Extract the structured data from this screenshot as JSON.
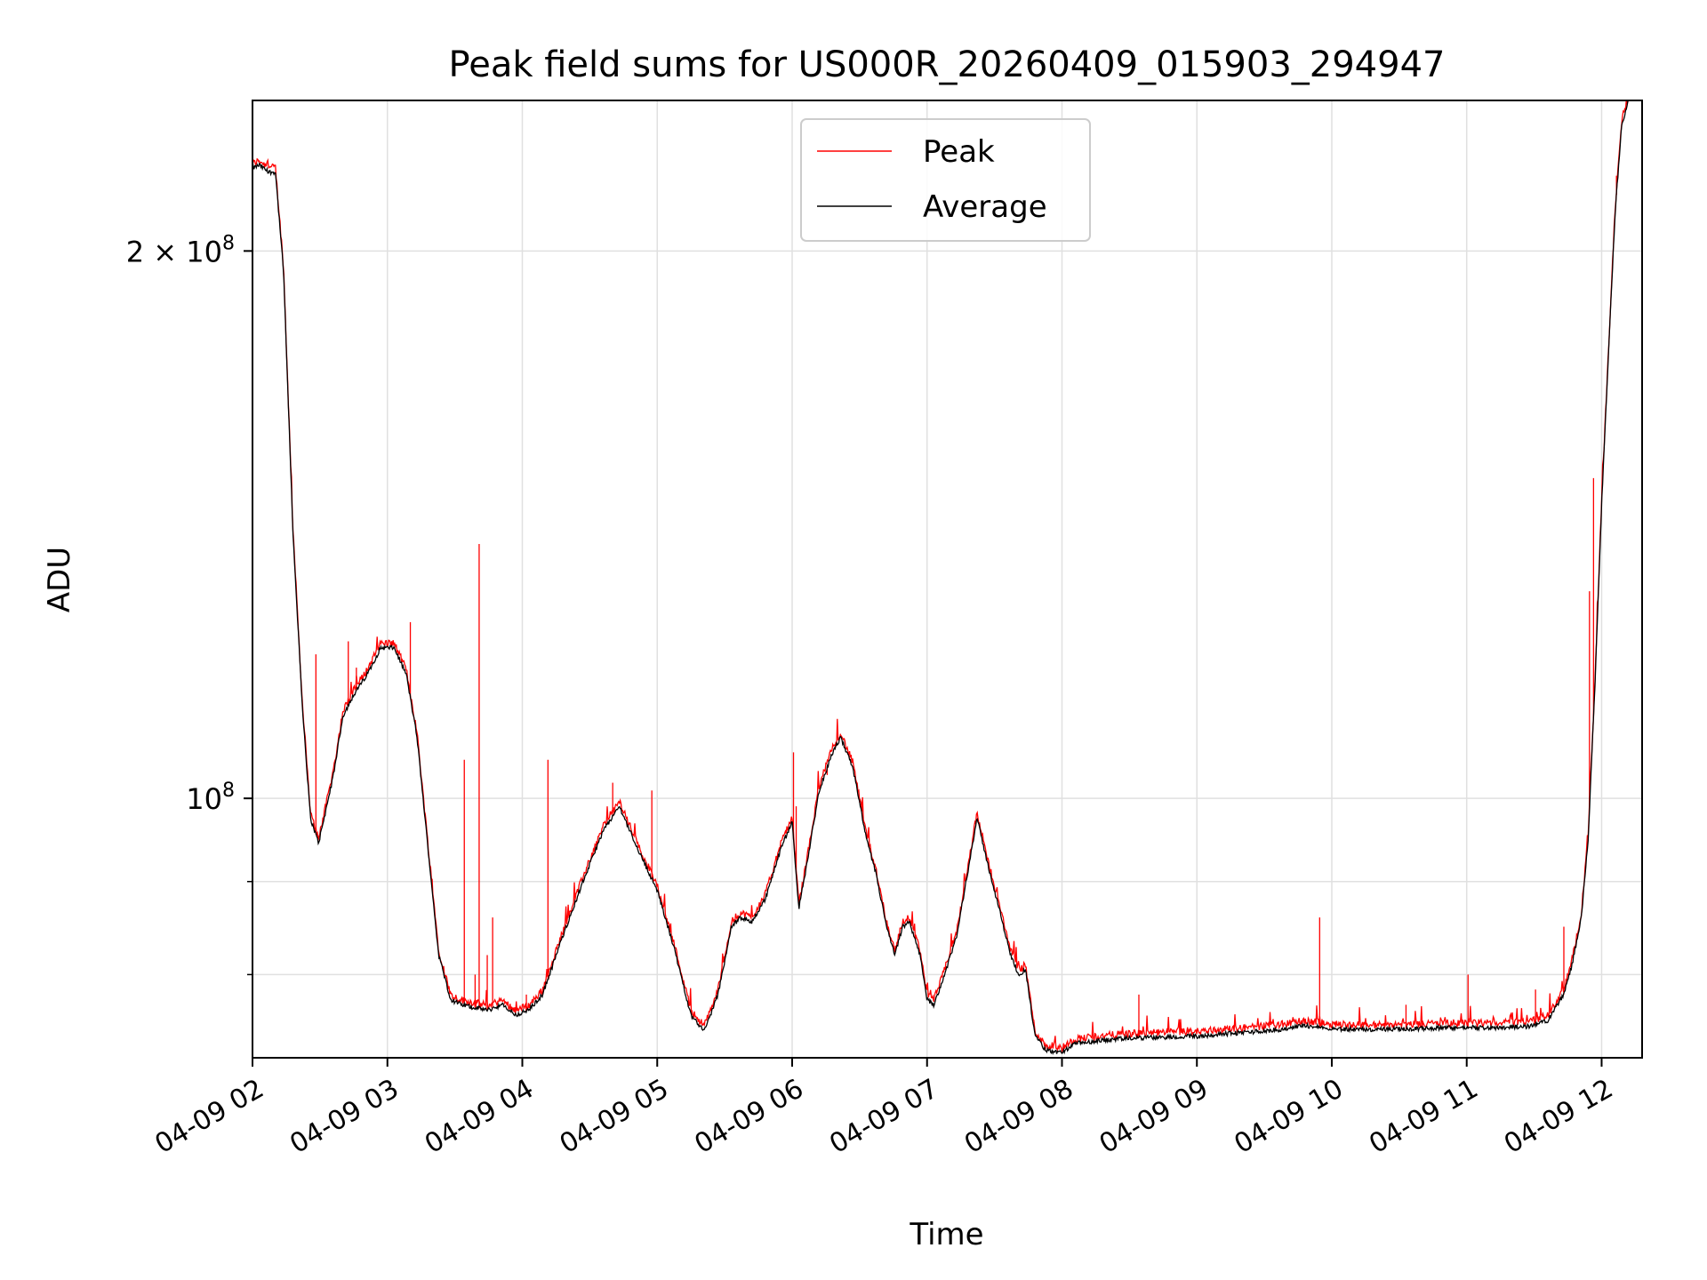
{
  "chart_data": {
    "type": "line",
    "title": "Peak field sums for US000R_20260409_015903_294947",
    "xlabel": "Time",
    "ylabel": "ADU",
    "yscale": "log",
    "grid": true,
    "legend_position": "upper center",
    "x_tick_labels": [
      "04-09 02",
      "04-09 03",
      "04-09 04",
      "04-09 05",
      "04-09 06",
      "04-09 07",
      "04-09 08",
      "04-09 09",
      "04-09 10",
      "04-09 11",
      "04-09 12"
    ],
    "x_ticks_hours": [
      2,
      3,
      4,
      5,
      6,
      7,
      8,
      9,
      10,
      11,
      12
    ],
    "xlim_hours": [
      2.0,
      12.3
    ],
    "ylim": [
      72000000,
      242000000
    ],
    "y_major_ticks": [
      {
        "value": 100000000,
        "base": "10",
        "exp": "8",
        "mant": ""
      },
      {
        "value": 200000000,
        "base": "10",
        "exp": "8",
        "mant": "2 × "
      }
    ],
    "y_minor_ticks": [
      80000000,
      90000000
    ],
    "series": [
      {
        "name": "Peak",
        "color": "#ff0000",
        "spikes": [
          [
            2.47,
            120000000
          ],
          [
            2.71,
            122000000
          ],
          [
            2.77,
            118000000
          ],
          [
            3.17,
            125000000
          ],
          [
            3.36,
            85000000
          ],
          [
            3.57,
            105000000
          ],
          [
            3.65,
            80000000
          ],
          [
            3.68,
            138000000
          ],
          [
            3.74,
            82000000
          ],
          [
            3.78,
            86000000
          ],
          [
            4.19,
            105000000
          ],
          [
            4.03,
            78000000
          ],
          [
            4.67,
            102000000
          ],
          [
            4.96,
            101000000
          ],
          [
            6.01,
            106000000
          ],
          [
            6.03,
            99000000
          ],
          [
            6.26,
            103000000
          ],
          [
            8.57,
            78000000
          ],
          [
            9.91,
            86000000
          ],
          [
            10.55,
            77000000
          ],
          [
            11.01,
            80000000
          ],
          [
            11.51,
            78500000
          ],
          [
            11.72,
            85000000
          ],
          [
            11.91,
            130000000
          ],
          [
            11.94,
            150000000
          ],
          [
            12.11,
            220000000
          ]
        ]
      },
      {
        "name": "Average",
        "color": "#000000",
        "x_hours": [
          2.0,
          2.05,
          2.12,
          2.17,
          2.23,
          2.3,
          2.37,
          2.43,
          2.49,
          2.55,
          2.6,
          2.67,
          2.75,
          2.85,
          2.95,
          3.05,
          3.14,
          3.22,
          3.3,
          3.38,
          3.47,
          3.55,
          3.65,
          3.75,
          3.85,
          3.95,
          4.05,
          4.15,
          4.3,
          4.45,
          4.6,
          4.72,
          4.85,
          5.0,
          5.12,
          5.25,
          5.35,
          5.45,
          5.55,
          5.62,
          5.7,
          5.8,
          5.92,
          6.0,
          6.05,
          6.12,
          6.2,
          6.3,
          6.36,
          6.45,
          6.55,
          6.62,
          6.7,
          6.76,
          6.82,
          6.87,
          6.9,
          6.95,
          7.0,
          7.05,
          7.13,
          7.22,
          7.3,
          7.37,
          7.45,
          7.55,
          7.62,
          7.68,
          7.73,
          7.8,
          7.88,
          7.95,
          8.0,
          8.1,
          8.3,
          8.5,
          8.75,
          9.0,
          9.3,
          9.6,
          9.8,
          10.0,
          10.3,
          10.6,
          10.9,
          11.2,
          11.45,
          11.6,
          11.72,
          11.78,
          11.85,
          11.9,
          11.95,
          12.0,
          12.05,
          12.1,
          12.15,
          12.2
        ],
        "y": [
          222000000,
          223000000,
          221000000,
          221000000,
          195000000,
          140000000,
          112000000,
          97500000,
          94500000,
          99000000,
          103000000,
          111000000,
          114000000,
          117000000,
          121000000,
          121000000,
          117000000,
          108000000,
          94000000,
          82000000,
          77500000,
          77000000,
          76700000,
          76500000,
          77000000,
          76000000,
          76500000,
          78000000,
          84000000,
          90000000,
          96000000,
          99000000,
          94000000,
          89000000,
          83000000,
          76000000,
          74500000,
          78000000,
          85000000,
          86000000,
          85500000,
          88000000,
          94000000,
          97000000,
          87000000,
          93000000,
          101000000,
          106000000,
          108000000,
          104000000,
          95000000,
          91000000,
          85000000,
          82000000,
          85000000,
          85500000,
          84000000,
          82000000,
          77500000,
          77000000,
          80000000,
          84000000,
          91000000,
          97500000,
          92000000,
          86000000,
          82000000,
          80000000,
          80500000,
          74000000,
          72700000,
          72500000,
          72500000,
          73300000,
          73600000,
          73800000,
          73900000,
          74000000,
          74300000,
          74600000,
          75000000,
          74700000,
          74600000,
          74700000,
          74800000,
          74800000,
          74900000,
          75500000,
          78000000,
          81000000,
          86000000,
          95000000,
          115000000,
          145000000,
          175000000,
          210000000,
          235000000,
          242000000
        ]
      }
    ]
  }
}
